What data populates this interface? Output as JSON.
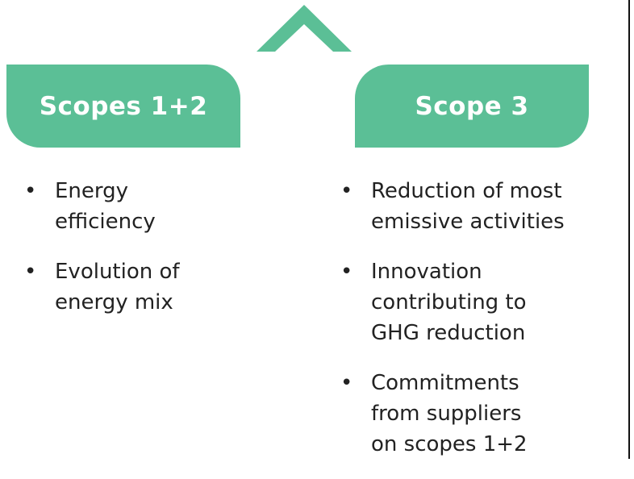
{
  "columns": [
    {
      "title": "Scopes 1+2",
      "bullets": [
        {
          "lines": [
            "Energy",
            "efficiency"
          ]
        },
        {
          "lines": [
            "Evolution of",
            "energy mix"
          ]
        }
      ]
    },
    {
      "title": "Scope 3",
      "bullets": [
        {
          "lines": [
            "Reduction of most",
            "emissive activities"
          ]
        },
        {
          "lines": [
            "Innovation",
            "contributing to",
            "GHG reduction"
          ]
        },
        {
          "lines": [
            "Commitments",
            "from suppliers",
            "on scopes 1+2"
          ]
        }
      ]
    }
  ]
}
